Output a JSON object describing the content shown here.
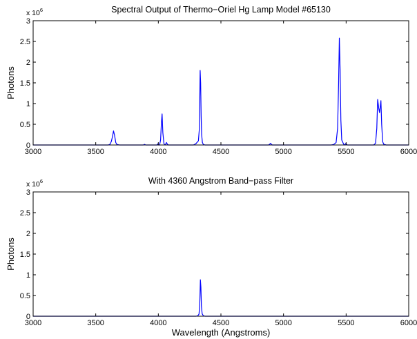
{
  "chart_data": [
    {
      "type": "line",
      "title": "Spectral Output of Thermo−Oriel Hg Lamp Model #65130",
      "xlabel": "",
      "ylabel": "Photons",
      "y_multiplier_base": "x 10",
      "y_multiplier_exp": "6",
      "xlim": [
        3000,
        6000
      ],
      "ylim": [
        0,
        3000000
      ],
      "xticks": [
        3000,
        3500,
        4000,
        4500,
        5000,
        5500,
        6000
      ],
      "xtick_labels": [
        "3000",
        "3500",
        "4000",
        "4500",
        "5000",
        "5500",
        "6000"
      ],
      "yticks": [
        0,
        500000,
        1000000,
        1500000,
        2000000,
        2500000,
        3000000
      ],
      "ytick_labels": [
        "0",
        "0.5",
        "1",
        "1.5",
        "2",
        "2.5",
        "3"
      ],
      "grid": false,
      "color": "#0000ff",
      "series": [
        {
          "x": [
            3000,
            3600,
            3615,
            3625,
            3635,
            3642,
            3650,
            3660,
            3670,
            3690,
            3880,
            3890,
            3900,
            3990,
            3996,
            4000,
            4010,
            4018,
            4024,
            4030,
            4036,
            4045,
            4055,
            4065,
            4072,
            4080,
            4090,
            4280,
            4300,
            4320,
            4328,
            4334,
            4338,
            4342,
            4346,
            4352,
            4360,
            4375,
            4880,
            4890,
            4896,
            4902,
            4910,
            5380,
            5400,
            5420,
            5432,
            5440,
            5446,
            5452,
            5458,
            5465,
            5480,
            5490,
            5498,
            5504,
            5512,
            5720,
            5735,
            5745,
            5752,
            5760,
            5767,
            5772,
            5778,
            5784,
            5792,
            5800,
            5820,
            6000
          ],
          "y": [
            0,
            0,
            20000,
            90000,
            220000,
            340000,
            240000,
            60000,
            10000,
            0,
            0,
            15000,
            0,
            0,
            30000,
            0,
            0,
            120000,
            500000,
            750000,
            300000,
            30000,
            0,
            60000,
            20000,
            0,
            0,
            0,
            30000,
            100000,
            400000,
            1800000,
            1500000,
            700000,
            250000,
            60000,
            10000,
            0,
            0,
            20000,
            40000,
            20000,
            0,
            0,
            10000,
            60000,
            400000,
            1500000,
            2580000,
            1800000,
            600000,
            120000,
            20000,
            0,
            40000,
            10000,
            0,
            0,
            40000,
            400000,
            1100000,
            900000,
            780000,
            900000,
            1070000,
            500000,
            80000,
            20000,
            0,
            0
          ]
        }
      ]
    },
    {
      "type": "line",
      "title": "With 4360 Angstrom Band−pass Filter",
      "xlabel": "Wavelength (Angstroms)",
      "ylabel": "Photons",
      "y_multiplier_base": "x 10",
      "y_multiplier_exp": "6",
      "xlim": [
        3000,
        6000
      ],
      "ylim": [
        0,
        3000000
      ],
      "xticks": [
        3000,
        3500,
        4000,
        4500,
        5000,
        5500,
        6000
      ],
      "xtick_labels": [
        "3000",
        "3500",
        "4000",
        "4500",
        "5000",
        "5500",
        "6000"
      ],
      "yticks": [
        0,
        500000,
        1000000,
        1500000,
        2000000,
        2500000,
        3000000
      ],
      "ytick_labels": [
        "0",
        "0.5",
        "1",
        "1.5",
        "2",
        "2.5",
        "3"
      ],
      "grid": false,
      "color": "#0000ff",
      "series": [
        {
          "x": [
            3000,
            4300,
            4315,
            4325,
            4331,
            4336,
            4340,
            4344,
            4350,
            4360,
            4375,
            6000
          ],
          "y": [
            0,
            0,
            10000,
            50000,
            300000,
            880000,
            700000,
            250000,
            60000,
            10000,
            0,
            0
          ]
        }
      ]
    }
  ]
}
